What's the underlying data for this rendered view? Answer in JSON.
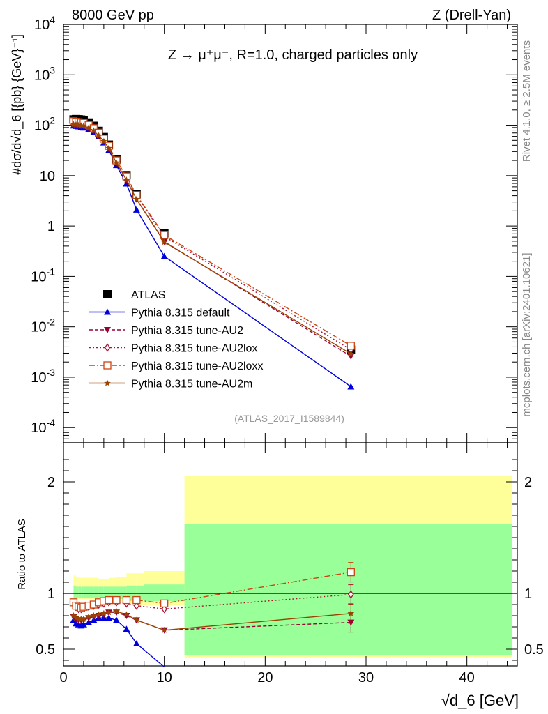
{
  "header": {
    "left": "8000 GeV pp",
    "right": "Z (Drell-Yan)"
  },
  "side_labels": {
    "rivet": "Rivet 4.1.0, ≥ 2.5M events",
    "mcplots": "mcplots.cern.ch [arXiv:2401.10621]"
  },
  "chart_data": [
    {
      "type": "line",
      "panel": "main",
      "title": "Z → μ⁺μ⁻, R=1.0, charged particles only",
      "watermark": "(ATLAS_2017_I1589844)",
      "ylabel": "#dσ/d√d_6 [{pb} {GeV}⁻¹]",
      "yscale": "log",
      "ylim": [
        5e-05,
        10000
      ],
      "xlim": [
        0,
        45
      ],
      "y_ticks": [
        {
          "v": 0.0001,
          "base": "10",
          "exp": "-4"
        },
        {
          "v": 0.001,
          "base": "10",
          "exp": "-3"
        },
        {
          "v": 0.01,
          "base": "10",
          "exp": "-2"
        },
        {
          "v": 0.1,
          "base": "10",
          "exp": "-1"
        },
        {
          "v": 1,
          "base": "1",
          "exp": ""
        },
        {
          "v": 10,
          "base": "10",
          "exp": ""
        },
        {
          "v": 100,
          "base": "10",
          "exp": "2"
        },
        {
          "v": 1000,
          "base": "10",
          "exp": "3"
        },
        {
          "v": 10000,
          "base": "10",
          "exp": "4"
        }
      ],
      "x": [
        1.0,
        1.25,
        1.5,
        1.75,
        2.0,
        2.5,
        3.0,
        3.5,
        4.0,
        4.5,
        5.25,
        6.25,
        7.25,
        10.0,
        28.5
      ],
      "series": [
        {
          "name": "ATLAS",
          "marker": "square",
          "color": "#000000",
          "dash": "none",
          "values": [
            130,
            132,
            131,
            129,
            127,
            113,
            97,
            77,
            58,
            41,
            21,
            10.2,
            4.3,
            0.72,
            0.0035
          ]
        },
        {
          "name": "Pythia 8.315 default",
          "marker": "triangle-up",
          "color": "#0000dd",
          "dash": "none",
          "values": [
            98,
            96,
            94,
            91,
            89,
            83,
            73,
            60,
            45,
            32,
            16,
            6.9,
            2.1,
            0.25,
            0.00065
          ]
        },
        {
          "name": "Pythia 8.315 tune-AU2",
          "marker": "triangle-down",
          "color": "#990033",
          "dash": "5,3",
          "values": [
            102,
            101,
            99,
            97,
            96,
            88,
            77,
            61,
            47,
            34,
            17.5,
            8.2,
            3.4,
            0.49,
            0.0026
          ]
        },
        {
          "name": "Pythia 8.315 tune-AU2lox",
          "marker": "diamond",
          "color": "#aa1133",
          "dash": "2,3",
          "values": [
            118,
            116,
            114,
            112,
            110,
            100,
            86,
            70,
            53,
            38,
            19.5,
            9.3,
            3.9,
            0.62,
            0.0035
          ]
        },
        {
          "name": "Pythia 8.315 tune-AU2loxx",
          "marker": "square-open",
          "color": "#cc4411",
          "dash": "8,3,2,3",
          "values": [
            120,
            117,
            115,
            113,
            111,
            101,
            87,
            71,
            54,
            39,
            20,
            9.6,
            4.1,
            0.66,
            0.0042
          ]
        },
        {
          "name": "Pythia 8.315 tune-AU2m",
          "marker": "star",
          "color": "#994400",
          "dash": "none",
          "values": [
            104,
            102,
            100,
            98,
            97,
            89,
            78,
            62,
            48,
            35,
            18,
            8.2,
            3.4,
            0.48,
            0.0029
          ]
        }
      ]
    },
    {
      "type": "line",
      "panel": "ratio",
      "ylabel": "Ratio to ATLAS",
      "ylim": [
        0.35,
        2.35
      ],
      "xlim": [
        0,
        45
      ],
      "xlabel": "√d_6 [GeV]",
      "x_ticks": [
        0,
        10,
        20,
        30,
        40
      ],
      "y_ticks": [
        0.5,
        1,
        2
      ],
      "reference": 1,
      "bands": {
        "edges": [
          1.0,
          1.25,
          1.5,
          1.75,
          2.0,
          2.5,
          3.0,
          3.5,
          4.0,
          4.5,
          5.25,
          6.25,
          7.25,
          8.0,
          12.0,
          44.5
        ],
        "yellow_lo": [
          0.95,
          0.95,
          0.95,
          0.95,
          0.95,
          0.95,
          0.95,
          0.95,
          0.94,
          0.93,
          0.92,
          0.91,
          0.9,
          0.9,
          0.42
        ],
        "yellow_hi": [
          1.16,
          1.15,
          1.14,
          1.14,
          1.14,
          1.14,
          1.14,
          1.13,
          1.13,
          1.14,
          1.15,
          1.18,
          1.18,
          1.2,
          2.05
        ],
        "green_lo": [
          0.96,
          0.96,
          0.96,
          0.96,
          0.96,
          0.96,
          0.96,
          0.96,
          0.95,
          0.95,
          0.95,
          0.94,
          0.94,
          0.93,
          0.45
        ],
        "green_hi": [
          1.07,
          1.06,
          1.06,
          1.06,
          1.06,
          1.06,
          1.06,
          1.06,
          1.06,
          1.06,
          1.06,
          1.07,
          1.07,
          1.08,
          1.62
        ]
      },
      "series": [
        {
          "name": "Pythia 8.315 default",
          "points": [
            [
              1.0,
              0.76
            ],
            [
              1.25,
              0.73
            ],
            [
              1.5,
              0.72
            ],
            [
              1.75,
              0.71
            ],
            [
              2.0,
              0.72
            ],
            [
              2.5,
              0.74
            ],
            [
              3.0,
              0.76
            ],
            [
              3.5,
              0.78
            ],
            [
              4.0,
              0.78
            ],
            [
              4.5,
              0.78
            ],
            [
              5.25,
              0.76
            ],
            [
              6.25,
              0.68
            ],
            [
              7.25,
              0.55
            ],
            [
              10.0,
              0.34
            ]
          ]
        },
        {
          "name": "Pythia 8.315 tune-AU2",
          "points": [
            [
              1.0,
              0.79
            ],
            [
              1.25,
              0.77
            ],
            [
              1.5,
              0.76
            ],
            [
              1.75,
              0.76
            ],
            [
              2.0,
              0.76
            ],
            [
              2.5,
              0.78
            ],
            [
              3.0,
              0.79
            ],
            [
              3.5,
              0.8
            ],
            [
              4.0,
              0.81
            ],
            [
              4.5,
              0.83
            ],
            [
              5.25,
              0.83
            ],
            [
              6.25,
              0.8
            ],
            [
              7.25,
              0.76
            ],
            [
              10.0,
              0.67
            ],
            [
              28.5,
              0.74
            ]
          ]
        },
        {
          "name": "Pythia 8.315 tune-AU2lox",
          "points": [
            [
              1.0,
              0.91
            ],
            [
              1.25,
              0.88
            ],
            [
              1.5,
              0.86
            ],
            [
              1.75,
              0.86
            ],
            [
              2.0,
              0.87
            ],
            [
              2.5,
              0.88
            ],
            [
              3.0,
              0.89
            ],
            [
              3.5,
              0.9
            ],
            [
              4.0,
              0.91
            ],
            [
              4.5,
              0.92
            ],
            [
              5.25,
              0.92
            ],
            [
              6.25,
              0.91
            ],
            [
              7.25,
              0.89
            ],
            [
              10.0,
              0.86
            ],
            [
              28.5,
              0.99
            ]
          ]
        },
        {
          "name": "Pythia 8.315 tune-AU2loxx",
          "points": [
            [
              1.0,
              0.92
            ],
            [
              1.25,
              0.89
            ],
            [
              1.5,
              0.88
            ],
            [
              1.75,
              0.87
            ],
            [
              2.0,
              0.88
            ],
            [
              2.5,
              0.89
            ],
            [
              3.0,
              0.9
            ],
            [
              3.5,
              0.92
            ],
            [
              4.0,
              0.93
            ],
            [
              4.5,
              0.94
            ],
            [
              5.25,
              0.94
            ],
            [
              6.25,
              0.94
            ],
            [
              7.25,
              0.94
            ],
            [
              10.0,
              0.91
            ],
            [
              28.5,
              1.19
            ]
          ]
        },
        {
          "name": "Pythia 8.315 tune-AU2m",
          "points": [
            [
              1.0,
              0.8
            ],
            [
              1.25,
              0.78
            ],
            [
              1.5,
              0.77
            ],
            [
              1.75,
              0.77
            ],
            [
              2.0,
              0.77
            ],
            [
              2.5,
              0.79
            ],
            [
              3.0,
              0.8
            ],
            [
              3.5,
              0.81
            ],
            [
              4.0,
              0.82
            ],
            [
              4.5,
              0.83
            ],
            [
              5.25,
              0.84
            ],
            [
              6.25,
              0.81
            ],
            [
              7.25,
              0.76
            ],
            [
              10.0,
              0.67
            ],
            [
              28.5,
              0.82
            ]
          ]
        }
      ]
    }
  ]
}
